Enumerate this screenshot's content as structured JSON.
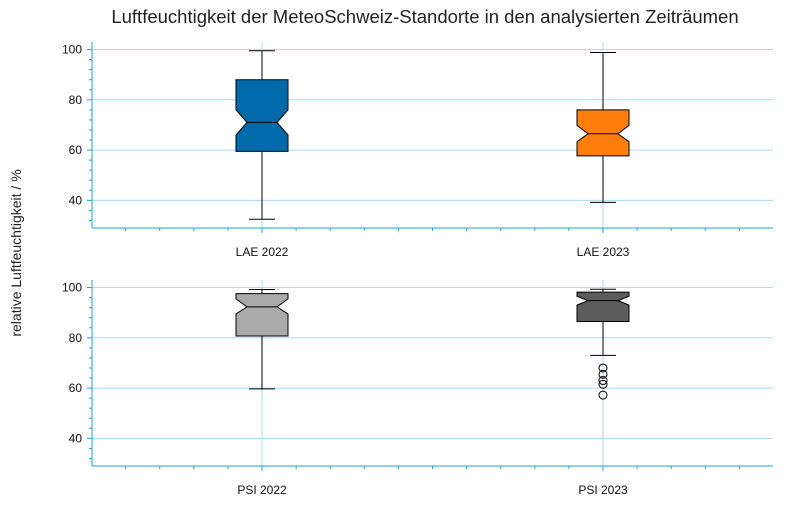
{
  "chart_data": {
    "type": "boxplot",
    "title": "Luftfeuchtigkeit der MeteoSchweiz-Standorte in den analysierten Zeiträumen",
    "ylabel": "relative Luftfeuchtigkeit / %",
    "notched": true,
    "grid": true,
    "colors": {
      "axis": "#1ba6d6",
      "grid": "#a8dcf2"
    },
    "panels": [
      {
        "ylim": [
          29,
          103
        ],
        "yticks": [
          40,
          60,
          80,
          100
        ],
        "boxes": [
          {
            "label": "LAE 2022",
            "whisker_low": 32.5,
            "q1": 59.5,
            "median": 71,
            "q3": 88,
            "whisker_high": 99.5,
            "notch_low": 66,
            "notch_high": 76,
            "color": "#006aaa",
            "outliers": []
          },
          {
            "label": "LAE 2023",
            "whisker_low": 39.2,
            "q1": 57.7,
            "median": 66.5,
            "q3": 76,
            "whisker_high": 98.8,
            "notch_low": 63.3,
            "notch_high": 69.8,
            "color": "#ff7f0e",
            "outliers": []
          }
        ]
      },
      {
        "ylim": [
          29,
          103
        ],
        "yticks": [
          40,
          60,
          80,
          100
        ],
        "boxes": [
          {
            "label": "PSI 2022",
            "whisker_low": 59.7,
            "q1": 80.7,
            "median": 92.3,
            "q3": 97.6,
            "whisker_high": 99.2,
            "notch_low": 89.5,
            "notch_high": 95.5,
            "color": "#aaaaaa",
            "outliers": []
          },
          {
            "label": "PSI 2023",
            "whisker_low": 73,
            "q1": 86.5,
            "median": 94.8,
            "q3": 98.2,
            "whisker_high": 99.3,
            "notch_low": 93,
            "notch_high": 96.5,
            "color": "#5c5c5c",
            "outliers": [
              68,
              65.5,
              63,
              61.5,
              57.2
            ]
          }
        ]
      }
    ]
  }
}
